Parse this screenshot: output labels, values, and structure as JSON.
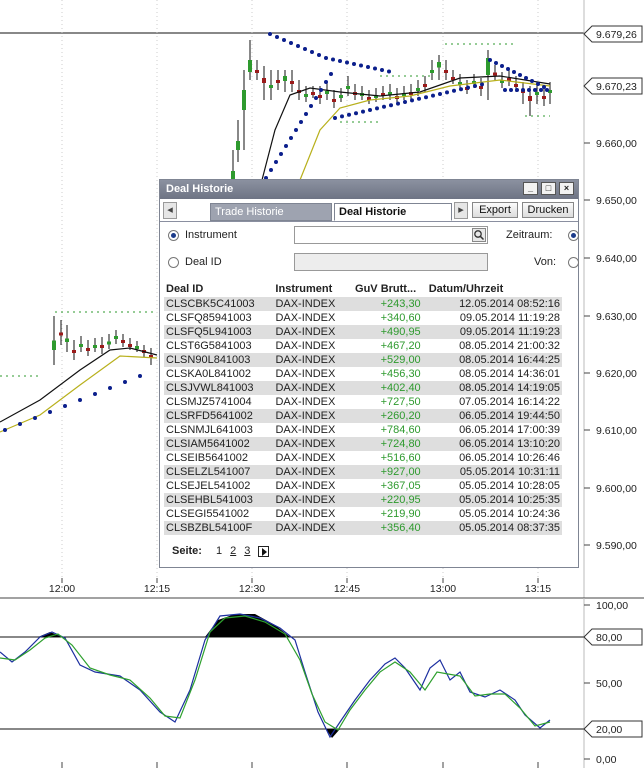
{
  "price_axis": {
    "ticks": [
      "9.590,00",
      "9.600,00",
      "9.610,00",
      "9.620,00",
      "9.630,00",
      "9.640,00",
      "9.650,00",
      "9.660,00"
    ],
    "tags": [
      "9.679,26",
      "9.670,23"
    ]
  },
  "time_axis": {
    "ticks": [
      "12:00",
      "12:15",
      "12:30",
      "12:45",
      "13:00",
      "13:15"
    ]
  },
  "oscillator_axis": {
    "ticks": [
      "100,00",
      "50,00",
      "0,00"
    ],
    "tags": [
      "80,00",
      "20,00"
    ]
  },
  "colors": {
    "candle_up": "#2e9a2e",
    "candle_down": "#9a1b1b",
    "sar_dots": "#0b1f8c",
    "ma_fast": "#111111",
    "ma_slow": "#b8b01c",
    "stoch_k": "#1c2fa0",
    "stoch_d": "#2ea02e",
    "dialog_header": "#7a8090",
    "gain_text": "#2e9a2e"
  },
  "dialog": {
    "title": "Deal Historie",
    "window_buttons": [
      "minimize-icon",
      "maximize-icon",
      "close-icon"
    ],
    "tabs": [
      {
        "label": "Trade Historie",
        "active": false
      },
      {
        "label": "Deal Historie",
        "active": true
      }
    ],
    "export_label": "Export",
    "print_label": "Drucken",
    "filter": {
      "instrument_label": "Instrument",
      "instrument_value": "",
      "deal_id_label": "Deal ID",
      "deal_id_value": "",
      "zeitraum_label": "Zeitraum:",
      "von_label": "Von:"
    },
    "columns": [
      "Deal ID",
      "Instrument",
      "GuV Brutt...",
      "Datum/Uhrzeit"
    ],
    "rows": [
      {
        "deal_id": "CLSCBK5C41003",
        "instrument": "DAX-INDEX",
        "guv": "+243,30",
        "datetime": "12.05.2014 08:52:16"
      },
      {
        "deal_id": "CLSFQ85941003",
        "instrument": "DAX-INDEX",
        "guv": "+340,60",
        "datetime": "09.05.2014 11:19:28"
      },
      {
        "deal_id": "CLSFQ5L941003",
        "instrument": "DAX-INDEX",
        "guv": "+490,95",
        "datetime": "09.05.2014 11:19:23"
      },
      {
        "deal_id": "CLST6G5841003",
        "instrument": "DAX-INDEX",
        "guv": "+467,20",
        "datetime": "08.05.2014 21:00:32"
      },
      {
        "deal_id": "CLSN90L841003",
        "instrument": "DAX-INDEX",
        "guv": "+529,00",
        "datetime": "08.05.2014 16:44:25"
      },
      {
        "deal_id": "CLSKA0L841002",
        "instrument": "DAX-INDEX",
        "guv": "+456,30",
        "datetime": "08.05.2014 14:36:01"
      },
      {
        "deal_id": "CLSJVWL841003",
        "instrument": "DAX-INDEX",
        "guv": "+402,40",
        "datetime": "08.05.2014 14:19:05"
      },
      {
        "deal_id": "CLSMJZ5741004",
        "instrument": "DAX-INDEX",
        "guv": "+727,50",
        "datetime": "07.05.2014 16:14:22"
      },
      {
        "deal_id": "CLSRFD5641002",
        "instrument": "DAX-INDEX",
        "guv": "+260,20",
        "datetime": "06.05.2014 19:44:50"
      },
      {
        "deal_id": "CLSNMJL641003",
        "instrument": "DAX-INDEX",
        "guv": "+784,60",
        "datetime": "06.05.2014 17:00:39"
      },
      {
        "deal_id": "CLSIAM5641002",
        "instrument": "DAX-INDEX",
        "guv": "+724,80",
        "datetime": "06.05.2014 13:10:20"
      },
      {
        "deal_id": "CLSEIB5641002",
        "instrument": "DAX-INDEX",
        "guv": "+516,60",
        "datetime": "06.05.2014 10:26:46"
      },
      {
        "deal_id": "CLSELZL541007",
        "instrument": "DAX-INDEX",
        "guv": "+927,00",
        "datetime": "05.05.2014 10:31:11"
      },
      {
        "deal_id": "CLSEJEL541002",
        "instrument": "DAX-INDEX",
        "guv": "+367,05",
        "datetime": "05.05.2014 10:28:05"
      },
      {
        "deal_id": "CLSEHBL541003",
        "instrument": "DAX-INDEX",
        "guv": "+220,95",
        "datetime": "05.05.2014 10:25:35"
      },
      {
        "deal_id": "CLSEGI5541002",
        "instrument": "DAX-INDEX",
        "guv": "+219,90",
        "datetime": "05.05.2014 10:24:36"
      },
      {
        "deal_id": "CLSBZBL54100F",
        "instrument": "DAX-INDEX",
        "guv": "+356,40",
        "datetime": "05.05.2014 08:37:35"
      }
    ],
    "pager": {
      "label": "Seite:",
      "pages": [
        "1",
        "2",
        "3"
      ],
      "current": "1"
    }
  }
}
